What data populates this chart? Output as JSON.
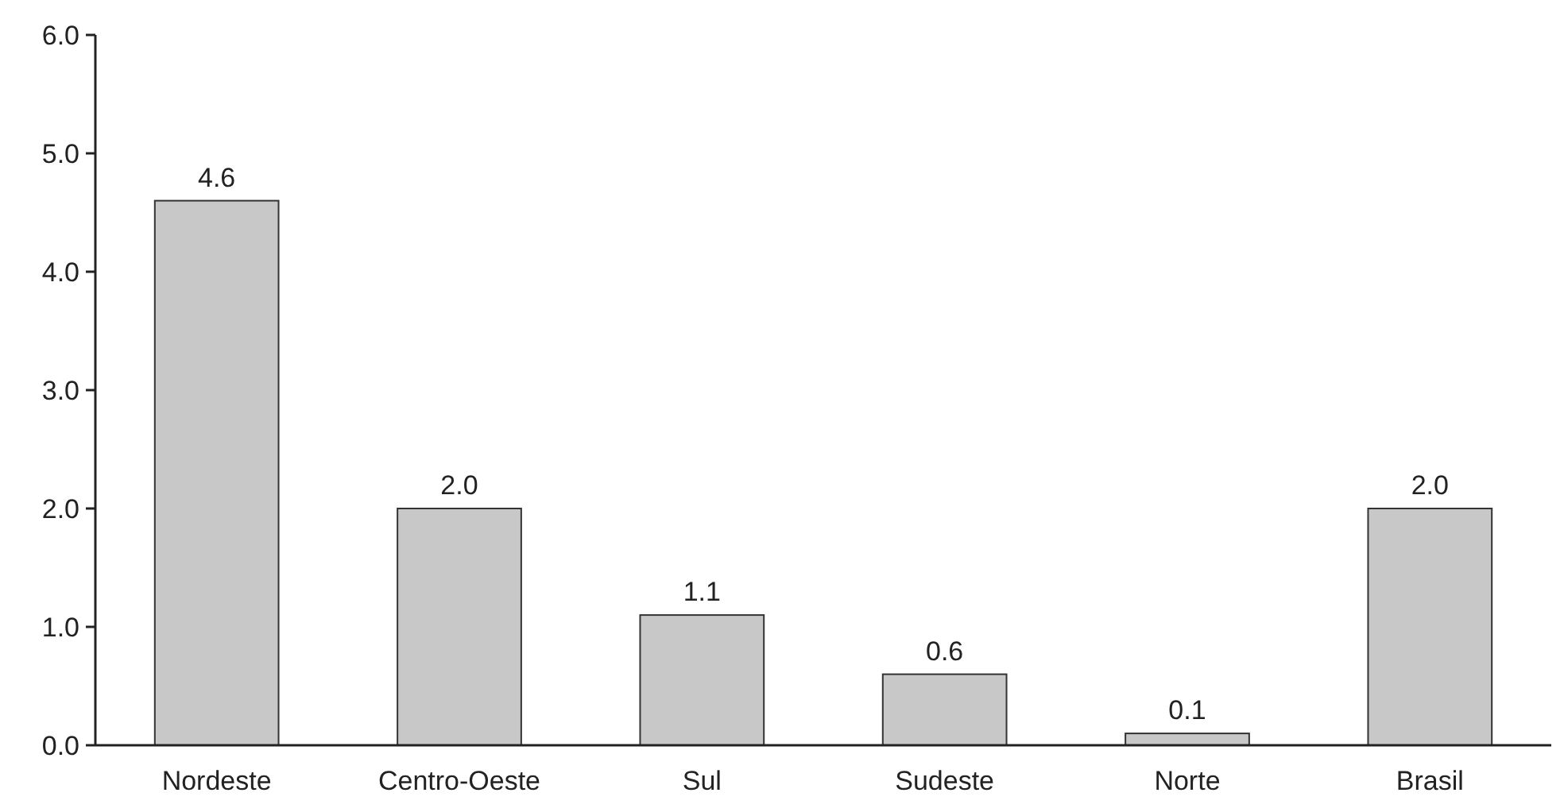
{
  "chart_data": {
    "type": "bar",
    "categories": [
      "Nordeste",
      "Centro-Oeste",
      "Sul",
      "Sudeste",
      "Norte",
      "Brasil"
    ],
    "values": [
      4.6,
      2.0,
      1.1,
      0.6,
      0.1,
      2.0
    ],
    "value_labels": [
      "4.6",
      "2.0",
      "1.1",
      "0.6",
      "0.1",
      "2.0"
    ],
    "color": "#c8c8c8",
    "ylim": [
      0,
      6
    ],
    "yticks": [
      {
        "value": 0,
        "label": "0.0"
      },
      {
        "value": 1,
        "label": "1.0"
      },
      {
        "value": 2,
        "label": "2.0"
      },
      {
        "value": 3,
        "label": "3.0"
      },
      {
        "value": 4,
        "label": "4.0"
      },
      {
        "value": 5,
        "label": "5.0"
      },
      {
        "value": 6,
        "label": "6.0"
      }
    ],
    "grid": false
  }
}
